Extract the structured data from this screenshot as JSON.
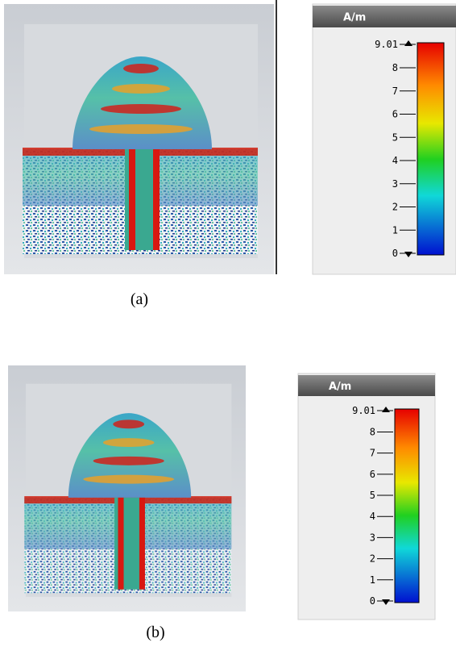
{
  "panels": [
    {
      "label": "(a)",
      "colorbar": {
        "unit": "A/m",
        "ticks": [
          9.01,
          8,
          7,
          6,
          5,
          4,
          3,
          2,
          1,
          0
        ]
      }
    },
    {
      "label": "(b)",
      "colorbar": {
        "unit": "A/m",
        "ticks": [
          9.01,
          8,
          7,
          6,
          5,
          4,
          3,
          2,
          1,
          0
        ]
      }
    }
  ]
}
